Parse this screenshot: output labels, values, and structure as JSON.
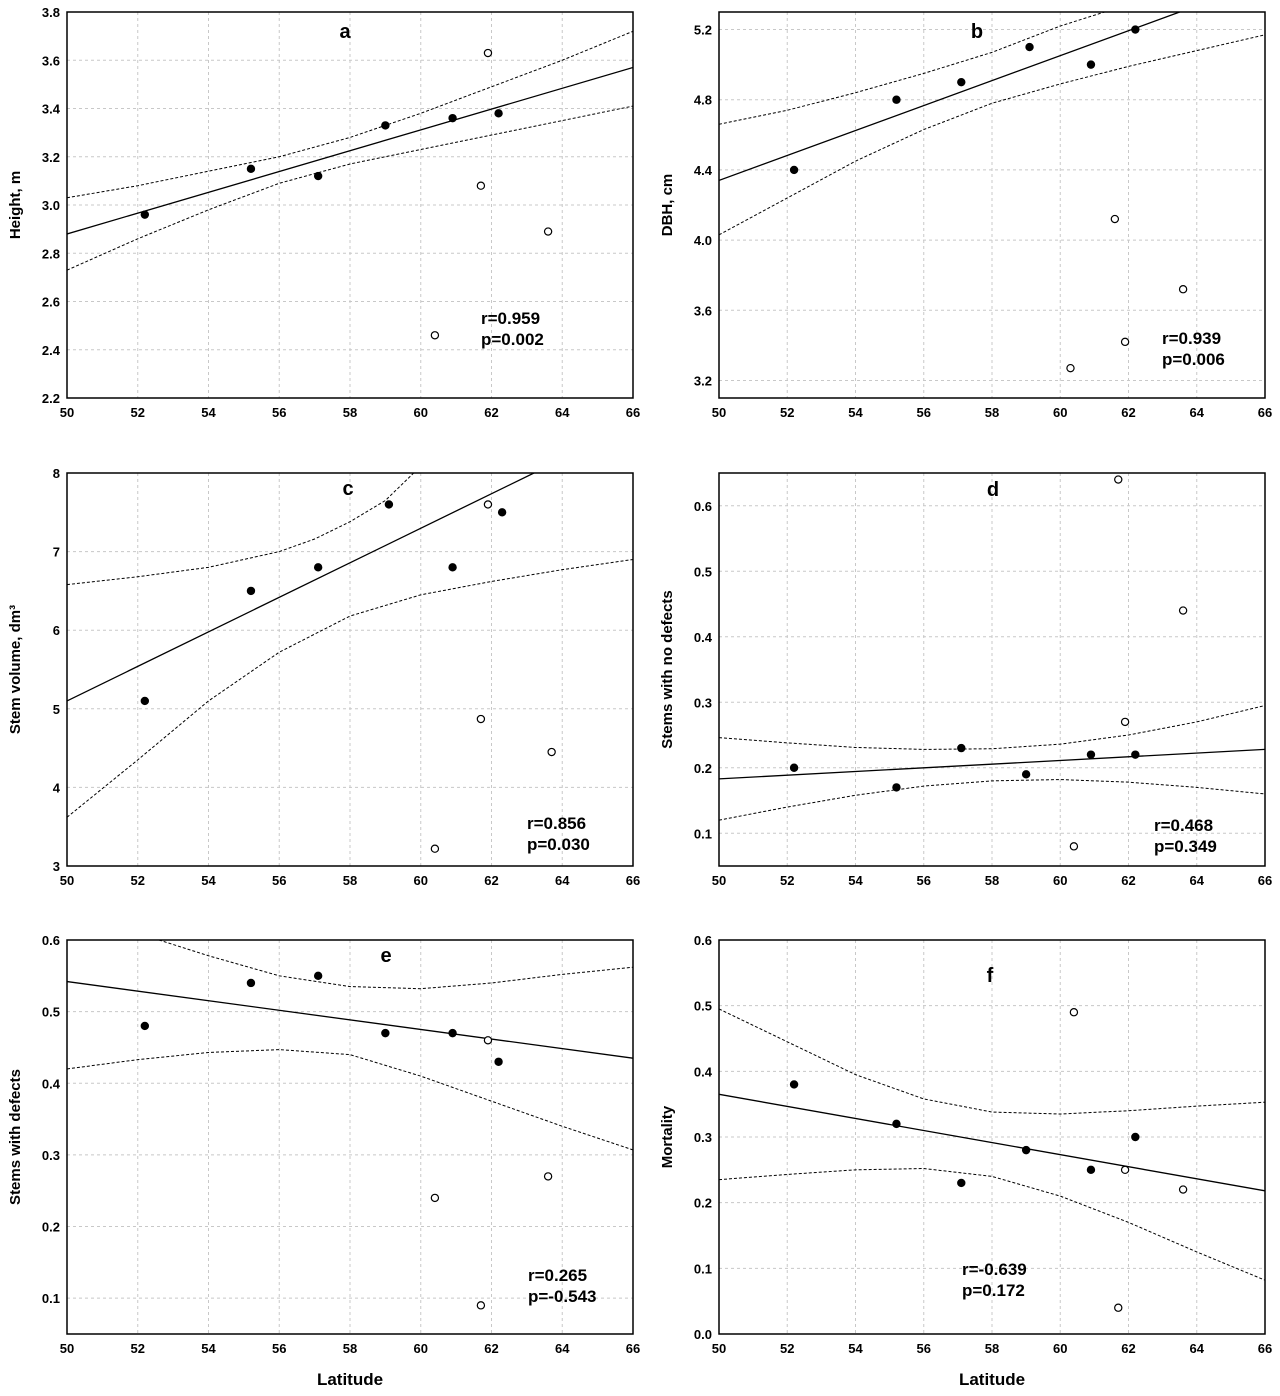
{
  "chart_data": [
    {
      "id": "a",
      "type": "scatter",
      "label": "a",
      "xlabel": "",
      "ylabel": "Height, m",
      "xlim": [
        50,
        66
      ],
      "ylim": [
        2.2,
        3.8
      ],
      "xticks": [
        "50",
        "52",
        "54",
        "56",
        "58",
        "60",
        "62",
        "64",
        "66"
      ],
      "yticks": [
        "2.2",
        "2.4",
        "2.6",
        "2.8",
        "3.0",
        "3.2",
        "3.4",
        "3.6",
        "3.8"
      ],
      "grid": true,
      "stat_r": "r=0.959",
      "stat_p": "p=0.002",
      "series": [
        {
          "marker": "filled",
          "x": [
            52.2,
            55.2,
            57.1,
            59.0,
            60.9,
            62.2
          ],
          "y": [
            2.96,
            3.15,
            3.12,
            3.33,
            3.36,
            3.38
          ]
        },
        {
          "marker": "open",
          "x": [
            60.4,
            61.7,
            61.9,
            63.6
          ],
          "y": [
            2.46,
            3.08,
            3.63,
            2.89
          ]
        }
      ],
      "regression_line": {
        "x": [
          50,
          66
        ],
        "y": [
          2.88,
          3.57
        ]
      },
      "confidence_upper": {
        "x": [
          50,
          52,
          54,
          56,
          58,
          60,
          62,
          64,
          66
        ],
        "y": [
          3.03,
          3.08,
          3.14,
          3.2,
          3.28,
          3.38,
          3.49,
          3.6,
          3.72
        ]
      },
      "confidence_lower": {
        "x": [
          50,
          52,
          54,
          56,
          58,
          60,
          62,
          64,
          66
        ],
        "y": [
          2.73,
          2.86,
          2.98,
          3.09,
          3.17,
          3.23,
          3.29,
          3.35,
          3.41
        ]
      }
    },
    {
      "id": "b",
      "type": "scatter",
      "label": "b",
      "xlabel": "",
      "ylabel": "DBH, cm",
      "xlim": [
        50,
        66
      ],
      "ylim": [
        3.1,
        5.3
      ],
      "xticks": [
        "50",
        "52",
        "54",
        "56",
        "58",
        "60",
        "62",
        "64",
        "66"
      ],
      "yticks": [
        "3.2",
        "3.6",
        "4.0",
        "4.4",
        "4.8",
        "5.2"
      ],
      "grid": true,
      "stat_r": "r=0.939",
      "stat_p": "p=0.006",
      "series": [
        {
          "marker": "filled",
          "x": [
            52.2,
            55.2,
            57.1,
            59.1,
            60.9,
            62.2
          ],
          "y": [
            4.4,
            4.8,
            4.9,
            5.1,
            5.0,
            5.2
          ]
        },
        {
          "marker": "open",
          "x": [
            60.3,
            61.6,
            61.9,
            63.6
          ],
          "y": [
            3.27,
            4.12,
            3.42,
            3.72
          ]
        }
      ],
      "regression_line": {
        "x": [
          50,
          63.5
        ],
        "y": [
          4.34,
          5.3
        ]
      },
      "confidence_upper": {
        "x": [
          50,
          52,
          54,
          56,
          58,
          60,
          61.3
        ],
        "y": [
          4.66,
          4.74,
          4.84,
          4.95,
          5.07,
          5.22,
          5.3
        ]
      },
      "confidence_lower": {
        "x": [
          50,
          52,
          54,
          56,
          58,
          60,
          62,
          64,
          66
        ],
        "y": [
          4.03,
          4.24,
          4.45,
          4.63,
          4.78,
          4.89,
          4.99,
          5.08,
          5.17
        ]
      }
    },
    {
      "id": "c",
      "type": "scatter",
      "label": "c",
      "xlabel": "",
      "ylabel": "Stem volume, dm³",
      "xlim": [
        50,
        66
      ],
      "ylim": [
        3,
        8
      ],
      "xticks": [
        "50",
        "52",
        "54",
        "56",
        "58",
        "60",
        "62",
        "64",
        "66"
      ],
      "yticks": [
        "3",
        "4",
        "5",
        "6",
        "7",
        "8"
      ],
      "grid": true,
      "stat_r": "r=0.856",
      "stat_p": "p=0.030",
      "series": [
        {
          "marker": "filled",
          "x": [
            52.2,
            55.2,
            57.1,
            59.1,
            60.9,
            62.3
          ],
          "y": [
            5.1,
            6.5,
            6.8,
            7.6,
            6.8,
            7.5
          ]
        },
        {
          "marker": "open",
          "x": [
            60.4,
            61.7,
            61.9,
            63.7
          ],
          "y": [
            3.22,
            4.87,
            7.6,
            4.45
          ]
        }
      ],
      "regression_line": {
        "x": [
          50,
          63.2
        ],
        "y": [
          5.1,
          8.0
        ]
      },
      "confidence_upper": {
        "x": [
          50,
          52,
          54,
          56,
          57,
          58,
          59,
          59.8
        ],
        "y": [
          6.58,
          6.68,
          6.8,
          7.0,
          7.16,
          7.38,
          7.65,
          8.0
        ]
      },
      "confidence_lower": {
        "x": [
          50,
          52,
          54,
          56,
          58,
          60,
          62,
          64,
          66
        ],
        "y": [
          3.62,
          4.35,
          5.1,
          5.72,
          6.18,
          6.45,
          6.62,
          6.77,
          6.9
        ]
      }
    },
    {
      "id": "d",
      "type": "scatter",
      "label": "d",
      "xlabel": "",
      "ylabel": "Stems with no defects",
      "xlim": [
        50,
        66
      ],
      "ylim": [
        0.05,
        0.65
      ],
      "xticks": [
        "50",
        "52",
        "54",
        "56",
        "58",
        "60",
        "62",
        "64",
        "66"
      ],
      "yticks": [
        "0.1",
        "0.2",
        "0.3",
        "0.4",
        "0.5",
        "0.6"
      ],
      "grid": true,
      "stat_r": "r=0.468",
      "stat_p": "p=0.349",
      "series": [
        {
          "marker": "filled",
          "x": [
            52.2,
            55.2,
            57.1,
            59.0,
            60.9,
            62.2
          ],
          "y": [
            0.2,
            0.17,
            0.23,
            0.19,
            0.22,
            0.22
          ]
        },
        {
          "marker": "open",
          "x": [
            60.4,
            61.7,
            61.9,
            63.6
          ],
          "y": [
            0.08,
            0.64,
            0.27,
            0.44
          ]
        }
      ],
      "regression_line": {
        "x": [
          50,
          66
        ],
        "y": [
          0.183,
          0.228
        ]
      },
      "confidence_upper": {
        "x": [
          50,
          52,
          54,
          56,
          58,
          60,
          62,
          64,
          66
        ],
        "y": [
          0.246,
          0.238,
          0.231,
          0.228,
          0.229,
          0.236,
          0.25,
          0.27,
          0.295
        ]
      },
      "confidence_lower": {
        "x": [
          50,
          52,
          54,
          56,
          58,
          60,
          62,
          64,
          66
        ],
        "y": [
          0.12,
          0.14,
          0.158,
          0.172,
          0.18,
          0.182,
          0.178,
          0.17,
          0.16
        ]
      }
    },
    {
      "id": "e",
      "type": "scatter",
      "label": "e",
      "xlabel": "Latitude",
      "ylabel": "Stems with defects",
      "xlim": [
        50,
        66
      ],
      "ylim": [
        0.05,
        0.6
      ],
      "xticks": [
        "50",
        "52",
        "54",
        "56",
        "58",
        "60",
        "62",
        "64",
        "66"
      ],
      "yticks": [
        "0.1",
        "0.2",
        "0.3",
        "0.4",
        "0.5",
        "0.6"
      ],
      "grid": true,
      "stat_r": "r=0.265",
      "stat_p": "p=-0.543",
      "series": [
        {
          "marker": "filled",
          "x": [
            52.2,
            55.2,
            57.1,
            59.0,
            60.9,
            62.2
          ],
          "y": [
            0.48,
            0.54,
            0.55,
            0.47,
            0.47,
            0.43
          ]
        },
        {
          "marker": "open",
          "x": [
            60.4,
            61.7,
            61.9,
            63.6
          ],
          "y": [
            0.24,
            0.09,
            0.46,
            0.27
          ]
        }
      ],
      "regression_line": {
        "x": [
          50,
          66
        ],
        "y": [
          0.542,
          0.435
        ]
      },
      "confidence_upper": {
        "x": [
          52.6,
          54,
          56,
          58,
          60,
          62,
          64,
          66
        ],
        "y": [
          0.6,
          0.578,
          0.55,
          0.535,
          0.532,
          0.54,
          0.552,
          0.562
        ]
      },
      "confidence_lower": {
        "x": [
          50,
          52,
          54,
          56,
          58,
          60,
          62,
          64,
          66
        ],
        "y": [
          0.42,
          0.433,
          0.443,
          0.447,
          0.44,
          0.41,
          0.375,
          0.34,
          0.307
        ]
      }
    },
    {
      "id": "f",
      "type": "scatter",
      "label": "f",
      "xlabel": "Latitude",
      "ylabel": "Mortality",
      "xlim": [
        50,
        66
      ],
      "ylim": [
        0,
        0.6
      ],
      "xticks": [
        "50",
        "52",
        "54",
        "56",
        "58",
        "60",
        "62",
        "64",
        "66"
      ],
      "yticks": [
        "0.0",
        "0.1",
        "0.2",
        "0.3",
        "0.4",
        "0.5",
        "0.6"
      ],
      "grid": true,
      "stat_r": "r=-0.639",
      "stat_p": "p=0.172",
      "series": [
        {
          "marker": "filled",
          "x": [
            52.2,
            55.2,
            57.1,
            59.0,
            60.9,
            62.2
          ],
          "y": [
            0.38,
            0.32,
            0.23,
            0.28,
            0.25,
            0.3
          ]
        },
        {
          "marker": "open",
          "x": [
            60.4,
            61.7,
            61.9,
            63.6
          ],
          "y": [
            0.49,
            0.04,
            0.25,
            0.22
          ]
        }
      ],
      "regression_line": {
        "x": [
          50,
          66
        ],
        "y": [
          0.365,
          0.218
        ]
      },
      "confidence_upper": {
        "x": [
          50,
          52,
          54,
          56,
          58,
          60,
          62,
          64,
          66
        ],
        "y": [
          0.495,
          0.445,
          0.395,
          0.358,
          0.338,
          0.335,
          0.34,
          0.347,
          0.353
        ]
      },
      "confidence_lower": {
        "x": [
          50,
          52,
          54,
          56,
          58,
          60,
          62,
          64,
          66
        ],
        "y": [
          0.235,
          0.243,
          0.25,
          0.252,
          0.24,
          0.21,
          0.17,
          0.125,
          0.082
        ]
      }
    }
  ]
}
